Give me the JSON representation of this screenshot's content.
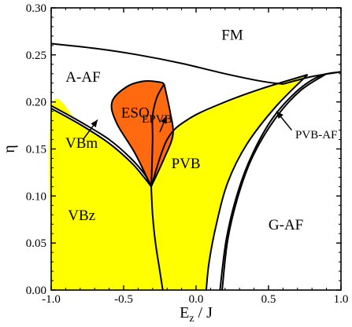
{
  "chart_data": {
    "type": "phase-diagram",
    "xlabel_main": "E",
    "xlabel_sub": "z",
    "xlabel_tail": " / J",
    "ylabel": "η",
    "xlim": [
      -1.0,
      1.0
    ],
    "ylim": [
      0.0,
      0.3
    ],
    "x_ticks": [
      -1.0,
      -0.5,
      0.0,
      0.5,
      1.0
    ],
    "x_tick_labels": [
      "-1.0",
      "-0.5",
      "0.0",
      "0.5",
      "1.0"
    ],
    "y_ticks": [
      0.0,
      0.05,
      0.1,
      0.15,
      0.2,
      0.25,
      0.3
    ],
    "y_tick_labels": [
      "0.00",
      "0.05",
      "0.10",
      "0.15",
      "0.20",
      "0.25",
      "0.30"
    ],
    "colors": {
      "yellow": "#ffff00",
      "orange": "#ff6a10",
      "line": "#000000",
      "white": "#ffffff"
    },
    "boundaries": {
      "fm_top": [
        [
          -1.0,
          0.262
        ],
        [
          -0.7,
          0.257
        ],
        [
          -0.4,
          0.25
        ],
        [
          -0.1,
          0.241
        ],
        [
          0.2,
          0.23
        ],
        [
          0.45,
          0.222
        ],
        [
          0.6,
          0.219
        ]
      ],
      "fm_right": [
        [
          0.6,
          0.219
        ],
        [
          0.8,
          0.227
        ],
        [
          1.0,
          0.232
        ]
      ],
      "vbm_outer": [
        [
          -1.0,
          0.196
        ],
        [
          -0.8,
          0.179
        ],
        [
          -0.6,
          0.16
        ],
        [
          -0.45,
          0.14
        ],
        [
          -0.35,
          0.122
        ],
        [
          -0.31,
          0.11
        ]
      ],
      "vbm_inner": [
        [
          -1.0,
          0.193
        ],
        [
          -0.8,
          0.176
        ],
        [
          -0.6,
          0.156
        ],
        [
          -0.45,
          0.136
        ],
        [
          -0.36,
          0.12
        ],
        [
          -0.31,
          0.11
        ]
      ],
      "vbz_right": [
        [
          -0.31,
          0.11
        ],
        [
          -0.3,
          0.08
        ],
        [
          -0.28,
          0.05
        ],
        [
          -0.25,
          0.02
        ],
        [
          -0.23,
          0.0
        ]
      ],
      "pvb_left": [
        [
          -0.31,
          0.11
        ],
        [
          -0.2,
          0.16
        ],
        [
          -0.05,
          0.182
        ],
        [
          0.2,
          0.2
        ],
        [
          0.45,
          0.214
        ],
        [
          0.77,
          0.229
        ]
      ],
      "pvb_right": [
        [
          0.77,
          0.229
        ],
        [
          0.55,
          0.195
        ],
        [
          0.35,
          0.155
        ],
        [
          0.22,
          0.115
        ],
        [
          0.14,
          0.07
        ],
        [
          0.09,
          0.03
        ],
        [
          0.07,
          0.0
        ]
      ],
      "pvbaf_inner": [
        [
          0.9,
          0.23
        ],
        [
          0.72,
          0.212
        ],
        [
          0.55,
          0.183
        ],
        [
          0.4,
          0.145
        ],
        [
          0.3,
          0.105
        ],
        [
          0.22,
          0.055
        ],
        [
          0.18,
          0.0
        ]
      ],
      "pvbaf_outer": [
        [
          1.0,
          0.232
        ],
        [
          0.86,
          0.228
        ],
        [
          0.7,
          0.212
        ],
        [
          0.53,
          0.183
        ],
        [
          0.39,
          0.145
        ],
        [
          0.29,
          0.105
        ],
        [
          0.21,
          0.055
        ],
        [
          0.165,
          0.0
        ]
      ],
      "eso_outer": [
        [
          -0.31,
          0.11
        ],
        [
          -0.42,
          0.145
        ],
        [
          -0.55,
          0.178
        ],
        [
          -0.58,
          0.2
        ],
        [
          -0.48,
          0.216
        ],
        [
          -0.36,
          0.222
        ],
        [
          -0.25,
          0.221
        ],
        [
          -0.22,
          0.219
        ]
      ],
      "eso_inner": [
        [
          -0.22,
          0.219
        ],
        [
          -0.27,
          0.205
        ],
        [
          -0.3,
          0.185
        ],
        [
          -0.3,
          0.16
        ],
        [
          -0.305,
          0.13
        ],
        [
          -0.31,
          0.11
        ]
      ],
      "epvb_right": [
        [
          -0.22,
          0.219
        ],
        [
          -0.18,
          0.19
        ],
        [
          -0.16,
          0.165
        ],
        [
          -0.22,
          0.14
        ],
        [
          -0.31,
          0.11
        ]
      ]
    },
    "annotations": [
      {
        "text": "FM",
        "x": 0.25,
        "y": 0.27
      },
      {
        "text": "A-AF",
        "x": -0.78,
        "y": 0.225
      },
      {
        "text": "ESO",
        "x": -0.42,
        "y": 0.187
      },
      {
        "text": "EPVB",
        "x": -0.27,
        "y": 0.181
      },
      {
        "text": "PVB",
        "x": -0.07,
        "y": 0.133
      },
      {
        "text": "VBm",
        "x": -0.79,
        "y": 0.155
      },
      {
        "text": "VBz",
        "x": -0.79,
        "y": 0.078
      },
      {
        "text": "G-AF",
        "x": 0.62,
        "y": 0.068
      },
      {
        "text": "PVB-AF",
        "x": 0.83,
        "y": 0.164
      }
    ],
    "arrows": [
      {
        "from": [
          -0.78,
          0.16
        ],
        "to": [
          -0.68,
          0.181
        ]
      },
      {
        "from": [
          -0.25,
          0.168
        ],
        "to": [
          -0.205,
          0.185
        ]
      },
      {
        "from": [
          0.66,
          0.17
        ],
        "to": [
          0.555,
          0.19
        ]
      }
    ]
  }
}
